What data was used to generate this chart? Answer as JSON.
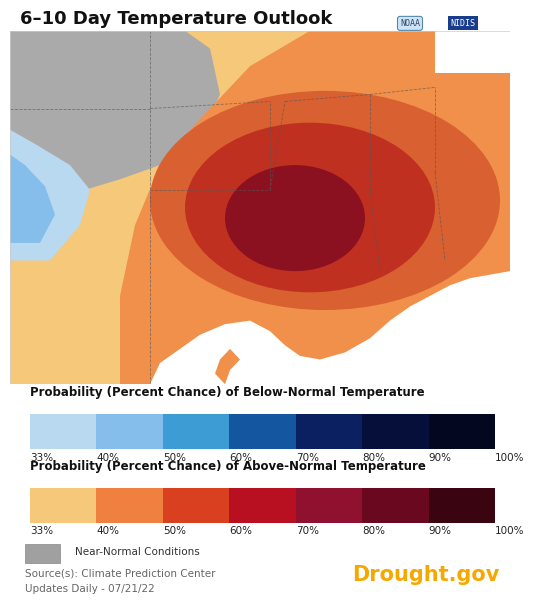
{
  "title": "6–10 Day Temperature Outlook",
  "background_color": "#ffffff",
  "below_colors": [
    "#b8d9f0",
    "#85beea",
    "#3d9cd4",
    "#1456a0",
    "#0a2060",
    "#060e3a",
    "#030820"
  ],
  "above_colors": [
    "#f5c87a",
    "#f08040",
    "#d94020",
    "#b81020",
    "#901030",
    "#6a0820",
    "#3a0510"
  ],
  "below_labels": [
    "33%",
    "40%",
    "50%",
    "60%",
    "70%",
    "80%",
    "90%",
    "100%"
  ],
  "above_labels": [
    "33%",
    "40%",
    "50%",
    "60%",
    "70%",
    "80%",
    "90%",
    "100%"
  ],
  "below_title": "Probability (Percent Chance) of Below-Normal Temperature",
  "above_title": "Probability (Percent Chance) of Above-Normal Temperature",
  "near_normal_color": "#a0a0a0",
  "near_normal_label": "Near-Normal Conditions",
  "source_text": "Source(s): Climate Prediction Center",
  "update_text": "Updates Daily - 07/21/22",
  "drought_gov_text": "Drought.gov",
  "drought_gov_color": "#f5a800",
  "map_light_orange": "#f5c87a",
  "map_orange": "#f0904a",
  "map_dark_orange": "#d96030",
  "map_red_orange": "#c03020",
  "map_dark_red": "#8b1020",
  "map_grey": "#aaaaaa",
  "map_blue_light": "#b8d9f0",
  "map_blue": "#85beea",
  "title_fontsize": 13,
  "legend_title_fontsize": 8.5,
  "legend_label_fontsize": 7.5,
  "source_fontsize": 7.5
}
